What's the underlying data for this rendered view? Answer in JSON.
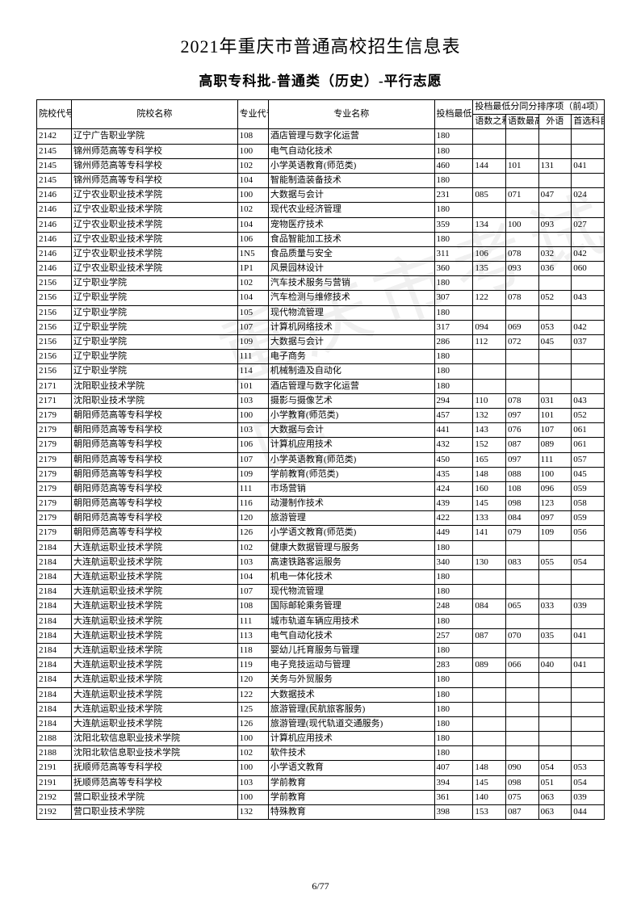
{
  "title": "2021年重庆市普通高校招生信息表",
  "subtitle": "高职专科批-普通类（历史）-平行志愿",
  "watermark": "重庆市考试院",
  "page_number": "6/77",
  "headers": {
    "school_code": "院校代号",
    "school_name": "院校名称",
    "major_code": "专业代号",
    "major_name": "专业名称",
    "min_score": "投档最低分",
    "tiebreak_group": "投档最低分同分排序项（前4项）",
    "t1": "语数之和",
    "t2": "语数最高",
    "t3": "外语",
    "t4": "首选科目"
  },
  "rows": [
    [
      "2142",
      "辽宁广告职业学院",
      "108",
      "酒店管理与数字化运营",
      "180",
      "",
      "",
      "",
      ""
    ],
    [
      "2145",
      "锦州师范高等专科学校",
      "100",
      "电气自动化技术",
      "180",
      "",
      "",
      "",
      ""
    ],
    [
      "2145",
      "锦州师范高等专科学校",
      "102",
      "小学英语教育(师范类)",
      "460",
      "144",
      "101",
      "131",
      "041"
    ],
    [
      "2145",
      "锦州师范高等专科学校",
      "104",
      "智能制造装备技术",
      "180",
      "",
      "",
      "",
      ""
    ],
    [
      "2146",
      "辽宁农业职业技术学院",
      "100",
      "大数据与会计",
      "231",
      "085",
      "071",
      "047",
      "024"
    ],
    [
      "2146",
      "辽宁农业职业技术学院",
      "102",
      "现代农业经济管理",
      "180",
      "",
      "",
      "",
      ""
    ],
    [
      "2146",
      "辽宁农业职业技术学院",
      "104",
      "宠物医疗技术",
      "359",
      "134",
      "100",
      "093",
      "027"
    ],
    [
      "2146",
      "辽宁农业职业技术学院",
      "106",
      "食品智能加工技术",
      "180",
      "",
      "",
      "",
      ""
    ],
    [
      "2146",
      "辽宁农业职业技术学院",
      "1N5",
      "食品质量与安全",
      "311",
      "106",
      "078",
      "032",
      "042"
    ],
    [
      "2146",
      "辽宁农业职业技术学院",
      "1P1",
      "风景园林设计",
      "360",
      "135",
      "093",
      "036",
      "060"
    ],
    [
      "2156",
      "辽宁职业学院",
      "102",
      "汽车技术服务与营销",
      "180",
      "",
      "",
      "",
      ""
    ],
    [
      "2156",
      "辽宁职业学院",
      "104",
      "汽车检测与维修技术",
      "307",
      "122",
      "078",
      "052",
      "043"
    ],
    [
      "2156",
      "辽宁职业学院",
      "105",
      "现代物流管理",
      "180",
      "",
      "",
      "",
      ""
    ],
    [
      "2156",
      "辽宁职业学院",
      "107",
      "计算机网络技术",
      "317",
      "094",
      "069",
      "053",
      "042"
    ],
    [
      "2156",
      "辽宁职业学院",
      "109",
      "大数据与会计",
      "286",
      "112",
      "072",
      "045",
      "037"
    ],
    [
      "2156",
      "辽宁职业学院",
      "111",
      "电子商务",
      "180",
      "",
      "",
      "",
      ""
    ],
    [
      "2156",
      "辽宁职业学院",
      "114",
      "机械制造及自动化",
      "180",
      "",
      "",
      "",
      ""
    ],
    [
      "2171",
      "沈阳职业技术学院",
      "101",
      "酒店管理与数字化运营",
      "180",
      "",
      "",
      "",
      ""
    ],
    [
      "2171",
      "沈阳职业技术学院",
      "103",
      "摄影与摄像艺术",
      "294",
      "110",
      "078",
      "031",
      "043"
    ],
    [
      "2179",
      "朝阳师范高等专科学校",
      "100",
      "小学教育(师范类)",
      "457",
      "132",
      "097",
      "101",
      "052"
    ],
    [
      "2179",
      "朝阳师范高等专科学校",
      "103",
      "大数据与会计",
      "441",
      "143",
      "076",
      "107",
      "061"
    ],
    [
      "2179",
      "朝阳师范高等专科学校",
      "106",
      "计算机应用技术",
      "432",
      "152",
      "087",
      "089",
      "061"
    ],
    [
      "2179",
      "朝阳师范高等专科学校",
      "107",
      "小学英语教育(师范类)",
      "450",
      "165",
      "097",
      "111",
      "057"
    ],
    [
      "2179",
      "朝阳师范高等专科学校",
      "109",
      "学前教育(师范类)",
      "435",
      "148",
      "088",
      "100",
      "045"
    ],
    [
      "2179",
      "朝阳师范高等专科学校",
      "111",
      "市场营销",
      "424",
      "160",
      "108",
      "096",
      "059"
    ],
    [
      "2179",
      "朝阳师范高等专科学校",
      "116",
      "动漫制作技术",
      "439",
      "145",
      "098",
      "123",
      "058"
    ],
    [
      "2179",
      "朝阳师范高等专科学校",
      "120",
      "旅游管理",
      "422",
      "133",
      "084",
      "097",
      "059"
    ],
    [
      "2179",
      "朝阳师范高等专科学校",
      "126",
      "小学语文教育(师范类)",
      "449",
      "141",
      "079",
      "109",
      "056"
    ],
    [
      "2184",
      "大连航运职业技术学院",
      "102",
      "健康大数据管理与服务",
      "180",
      "",
      "",
      "",
      ""
    ],
    [
      "2184",
      "大连航运职业技术学院",
      "103",
      "高速铁路客运服务",
      "340",
      "130",
      "083",
      "055",
      "054"
    ],
    [
      "2184",
      "大连航运职业技术学院",
      "104",
      "机电一体化技术",
      "180",
      "",
      "",
      "",
      ""
    ],
    [
      "2184",
      "大连航运职业技术学院",
      "107",
      "现代物流管理",
      "180",
      "",
      "",
      "",
      ""
    ],
    [
      "2184",
      "大连航运职业技术学院",
      "108",
      "国际邮轮乘务管理",
      "248",
      "084",
      "065",
      "033",
      "039"
    ],
    [
      "2184",
      "大连航运职业技术学院",
      "111",
      "城市轨道车辆应用技术",
      "180",
      "",
      "",
      "",
      ""
    ],
    [
      "2184",
      "大连航运职业技术学院",
      "113",
      "电气自动化技术",
      "257",
      "087",
      "070",
      "035",
      "041"
    ],
    [
      "2184",
      "大连航运职业技术学院",
      "118",
      "婴幼儿托育服务与管理",
      "180",
      "",
      "",
      "",
      ""
    ],
    [
      "2184",
      "大连航运职业技术学院",
      "119",
      "电子竞技运动与管理",
      "283",
      "089",
      "066",
      "040",
      "041"
    ],
    [
      "2184",
      "大连航运职业技术学院",
      "120",
      "关务与外贸服务",
      "180",
      "",
      "",
      "",
      ""
    ],
    [
      "2184",
      "大连航运职业技术学院",
      "122",
      "大数据技术",
      "180",
      "",
      "",
      "",
      ""
    ],
    [
      "2184",
      "大连航运职业技术学院",
      "125",
      "旅游管理(民航旅客服务)",
      "180",
      "",
      "",
      "",
      ""
    ],
    [
      "2184",
      "大连航运职业技术学院",
      "126",
      "旅游管理(现代轨道交通服务)",
      "180",
      "",
      "",
      "",
      ""
    ],
    [
      "2188",
      "沈阳北软信息职业技术学院",
      "100",
      "计算机应用技术",
      "180",
      "",
      "",
      "",
      ""
    ],
    [
      "2188",
      "沈阳北软信息职业技术学院",
      "102",
      "软件技术",
      "180",
      "",
      "",
      "",
      ""
    ],
    [
      "2191",
      "抚顺师范高等专科学校",
      "100",
      "小学语文教育",
      "407",
      "148",
      "090",
      "054",
      "053"
    ],
    [
      "2191",
      "抚顺师范高等专科学校",
      "103",
      "学前教育",
      "394",
      "145",
      "098",
      "051",
      "054"
    ],
    [
      "2192",
      "营口职业技术学院",
      "100",
      "学前教育",
      "361",
      "140",
      "075",
      "063",
      "039"
    ],
    [
      "2192",
      "营口职业技术学院",
      "132",
      "特殊教育",
      "398",
      "153",
      "087",
      "063",
      "044"
    ]
  ]
}
